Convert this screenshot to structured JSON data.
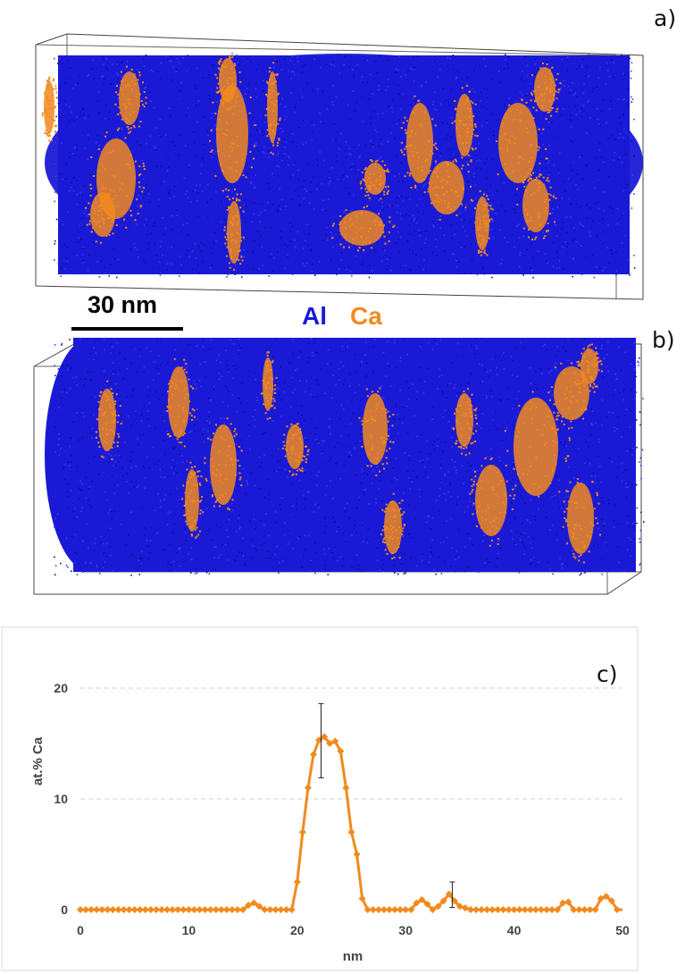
{
  "figure": {
    "panel_labels": [
      "a)",
      "b)",
      "c)"
    ],
    "scale_bar": "30 nm",
    "legend": [
      {
        "label": "Al",
        "color": "#1a1ad6"
      },
      {
        "label": "Ca",
        "color": "#f28a1e"
      }
    ]
  },
  "colors": {
    "al": "#1a1ad6",
    "ca": "#f28a1e"
  },
  "chart_data": {
    "type": "line",
    "xlabel": "nm",
    "ylabel": "at.% Ca",
    "xlim": [
      0,
      50
    ],
    "ylim": [
      0,
      20
    ],
    "xticks": [
      "0",
      "10",
      "20",
      "30",
      "40",
      "50"
    ],
    "yticks": [
      "0",
      "10",
      "20"
    ],
    "grid": "horizontal dashed",
    "series": [
      {
        "color": "#f28a1e",
        "x": [
          0,
          15,
          15.5,
          16,
          16.5,
          17,
          19.5,
          20,
          20.5,
          21,
          21.5,
          22,
          22.5,
          23,
          23.5,
          24,
          24.5,
          25,
          25.5,
          26,
          26.5,
          30.5,
          31,
          31.5,
          32,
          32.5,
          33,
          33.5,
          34,
          34.5,
          35,
          36,
          44,
          44.5,
          45,
          45.5,
          47.5,
          48,
          48.5,
          49,
          49.5,
          50
        ],
        "y": [
          0,
          0,
          0.4,
          0.6,
          0.3,
          0,
          0,
          2.5,
          7,
          11,
          14,
          15.3,
          15.6,
          15,
          15.2,
          14.3,
          11,
          7,
          5,
          1,
          0,
          0,
          0.6,
          0.9,
          0.5,
          0,
          0.3,
          0.8,
          1.4,
          0.8,
          0.3,
          0,
          0,
          0.6,
          0.7,
          0,
          0,
          1,
          1.2,
          0.8,
          0,
          0
        ]
      }
    ],
    "error_bars": [
      {
        "x": 22.2,
        "y": 15.2,
        "low": 11.9,
        "high": 18.6
      },
      {
        "x": 34.3,
        "y": 1.2,
        "low": 0.2,
        "high": 2.5
      }
    ]
  }
}
